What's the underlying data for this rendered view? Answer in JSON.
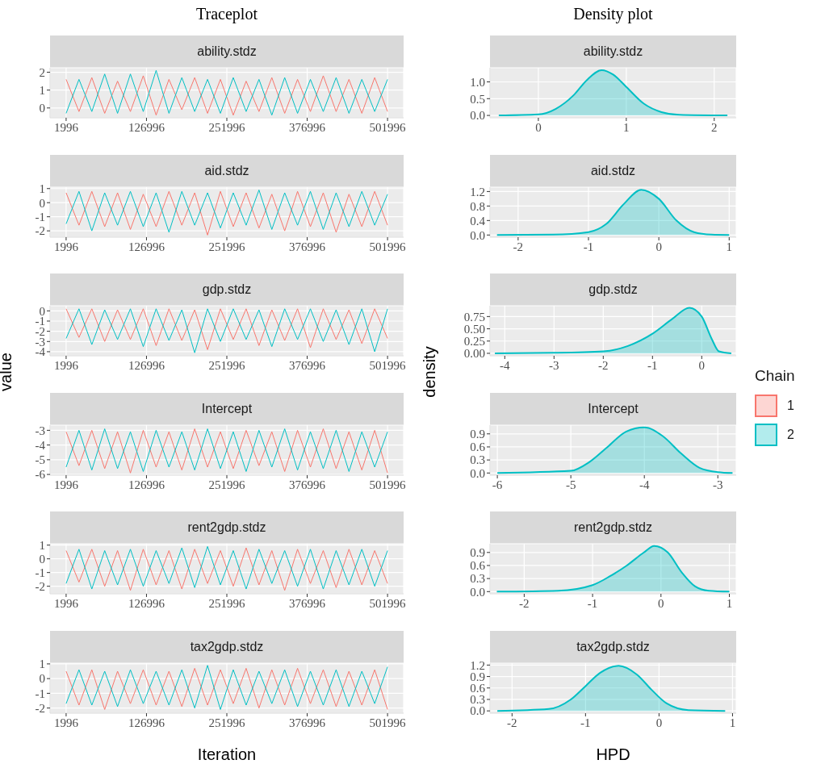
{
  "chart_data": [
    {
      "type": "line",
      "title": "Traceplot",
      "subtitle": "ability.stdz",
      "grid": true,
      "xlim": [
        -23004,
        526996
      ],
      "xticks": [
        1996,
        126996,
        251996,
        376996,
        501996
      ],
      "ylim": [
        -0.55,
        2.25
      ],
      "yticks": [
        0,
        1,
        2
      ],
      "x": [
        1996,
        21996,
        41996,
        61996,
        81996,
        101996,
        121996,
        141996,
        161996,
        181996,
        201996,
        221996,
        241996,
        261996,
        281996,
        301996,
        321996,
        341996,
        361996,
        381996,
        401996,
        421996,
        441996,
        461996,
        481996,
        501996
      ],
      "series": [
        {
          "color": "#f8766d",
          "values": [
            1.6,
            -0.2,
            1.7,
            -0.3,
            1.5,
            -0.2,
            1.8,
            -0.4,
            1.6,
            -0.1,
            1.7,
            -0.3,
            1.6,
            -0.4,
            1.5,
            -0.2,
            1.7,
            -0.3,
            1.6,
            -0.2,
            1.8,
            -0.2,
            1.6,
            -0.3,
            1.7,
            -0.2
          ]
        },
        {
          "color": "#00bfc4",
          "values": [
            -0.3,
            1.6,
            -0.2,
            1.9,
            -0.3,
            1.9,
            -0.2,
            2.1,
            -0.3,
            1.7,
            -0.2,
            1.6,
            -0.3,
            1.7,
            -0.2,
            1.6,
            -0.4,
            1.7,
            -0.3,
            1.6,
            -0.2,
            1.7,
            -0.3,
            1.6,
            -0.2,
            1.6
          ]
        }
      ]
    },
    {
      "type": "area",
      "title": "Density plot",
      "subtitle": "ability.stdz",
      "grid": true,
      "xlim": [
        -0.55,
        2.25
      ],
      "xticks": [
        0,
        1,
        2
      ],
      "ylim": [
        -0.07,
        1.42
      ],
      "yticks": [
        {
          "value": 0,
          "label": "0.0"
        },
        {
          "value": 0.5,
          "label": "0.5"
        },
        {
          "value": 1,
          "label": "1.0"
        }
      ],
      "x": [
        -0.45,
        0,
        0.2,
        0.4,
        0.55,
        0.72,
        0.85,
        1.0,
        1.2,
        1.4,
        1.6,
        2.15
      ],
      "series": [
        {
          "color": "#00bfc4",
          "values": [
            0,
            0.03,
            0.2,
            0.6,
            1.05,
            1.35,
            1.22,
            0.85,
            0.35,
            0.1,
            0.02,
            0
          ]
        }
      ]
    },
    {
      "type": "line",
      "subtitle": "aid.stdz",
      "grid": true,
      "xlim": [
        -23004,
        526996
      ],
      "xticks": [
        1996,
        126996,
        251996,
        376996,
        501996
      ],
      "ylim": [
        -2.45,
        1.1
      ],
      "yticks": [
        -2,
        -1,
        0,
        1
      ],
      "x": [
        1996,
        21996,
        41996,
        61996,
        81996,
        101996,
        121996,
        141996,
        161996,
        181996,
        201996,
        221996,
        241996,
        261996,
        281996,
        301996,
        321996,
        341996,
        361996,
        381996,
        401996,
        421996,
        441996,
        461996,
        481996,
        501996
      ],
      "series": [
        {
          "color": "#f8766d",
          "values": [
            0.7,
            -1.6,
            0.8,
            -1.7,
            0.7,
            -1.9,
            0.6,
            -1.7,
            0.8,
            -1.6,
            0.7,
            -2.3,
            0.8,
            -1.7,
            0.7,
            -1.8,
            0.6,
            -2.0,
            0.8,
            -1.7,
            0.7,
            -2.1,
            0.6,
            -1.7,
            0.8,
            -1.6
          ]
        },
        {
          "color": "#00bfc4",
          "values": [
            -1.5,
            0.8,
            -2.0,
            0.7,
            -1.6,
            0.8,
            -1.7,
            0.7,
            -2.1,
            0.8,
            -1.6,
            0.7,
            -1.8,
            0.7,
            -1.6,
            0.9,
            -1.9,
            0.7,
            -1.6,
            0.8,
            -1.9,
            0.7,
            -1.7,
            0.8,
            -1.6,
            0.6
          ]
        }
      ]
    },
    {
      "type": "area",
      "subtitle": "aid.stdz",
      "grid": true,
      "xlim": [
        -2.4,
        1.1
      ],
      "xticks": [
        -2,
        -1,
        0,
        1
      ],
      "ylim": [
        -0.06,
        1.32
      ],
      "yticks": [
        {
          "value": 0,
          "label": "0.0"
        },
        {
          "value": 0.4,
          "label": "0.4"
        },
        {
          "value": 0.8,
          "label": "0.8"
        },
        {
          "value": 1.2,
          "label": "1.2"
        }
      ],
      "x": [
        -2.3,
        -1.5,
        -1.0,
        -0.75,
        -0.5,
        -0.25,
        0,
        0.25,
        0.5,
        0.75,
        1.0
      ],
      "series": [
        {
          "color": "#00bfc4",
          "values": [
            0,
            0.01,
            0.08,
            0.3,
            0.85,
            1.25,
            1.0,
            0.4,
            0.08,
            0.01,
            0
          ]
        }
      ]
    },
    {
      "type": "line",
      "subtitle": "gdp.stdz",
      "ylabel": "value",
      "grid": true,
      "xlim": [
        -23004,
        526996
      ],
      "xticks": [
        1996,
        126996,
        251996,
        376996,
        501996
      ],
      "ylim": [
        -4.4,
        0.5
      ],
      "yticks": [
        -4,
        -3,
        -2,
        -1,
        0
      ],
      "x": [
        1996,
        21996,
        41996,
        61996,
        81996,
        101996,
        121996,
        141996,
        161996,
        181996,
        201996,
        221996,
        241996,
        261996,
        281996,
        301996,
        321996,
        341996,
        361996,
        381996,
        401996,
        421996,
        441996,
        461996,
        481996,
        501996
      ],
      "series": [
        {
          "color": "#f8766d",
          "values": [
            0.2,
            -2.6,
            0.2,
            -3.0,
            0.1,
            -2.8,
            0.2,
            -3.4,
            0.2,
            -2.9,
            0.1,
            -3.8,
            0.2,
            -2.8,
            0.2,
            -3.4,
            0.1,
            -2.9,
            0.2,
            -3.6,
            0.2,
            -2.8,
            0.1,
            -3.2,
            0.2,
            -2.7
          ]
        },
        {
          "color": "#00bfc4",
          "values": [
            -2.7,
            0.2,
            -3.3,
            0.1,
            -2.8,
            0.2,
            -3.5,
            0.2,
            -2.9,
            0.1,
            -4.1,
            0.2,
            -3.0,
            0.2,
            -2.8,
            0.1,
            -3.5,
            0.2,
            -2.8,
            0.2,
            -3.0,
            0.1,
            -3.3,
            0.2,
            -4.0,
            0.2
          ]
        }
      ]
    },
    {
      "type": "area",
      "subtitle": "gdp.stdz",
      "ylabel": "density",
      "grid": true,
      "xlim": [
        -4.3,
        0.7
      ],
      "xticks": [
        -4,
        -3,
        -2,
        -1,
        0
      ],
      "ylim": [
        -0.05,
        0.97
      ],
      "yticks": [
        {
          "value": 0,
          "label": "0.00"
        },
        {
          "value": 0.25,
          "label": "0.25"
        },
        {
          "value": 0.5,
          "label": "0.50"
        },
        {
          "value": 0.75,
          "label": "0.75"
        }
      ],
      "x": [
        -4.2,
        -3,
        -2,
        -1.5,
        -1,
        -0.6,
        -0.25,
        0,
        0.2,
        0.35,
        0.6
      ],
      "series": [
        {
          "color": "#00bfc4",
          "values": [
            0,
            0.01,
            0.04,
            0.15,
            0.4,
            0.7,
            0.93,
            0.75,
            0.3,
            0.04,
            0
          ]
        }
      ]
    },
    {
      "type": "line",
      "subtitle": "Intercept",
      "grid": true,
      "legend": "right",
      "legend_title": "Chain",
      "xlim": [
        -23004,
        526996
      ],
      "xticks": [
        1996,
        126996,
        251996,
        376996,
        501996
      ],
      "ylim": [
        -6.05,
        -2.65
      ],
      "yticks": [
        -6,
        -5,
        -4,
        -3
      ],
      "x": [
        1996,
        21996,
        41996,
        61996,
        81996,
        101996,
        121996,
        141996,
        161996,
        181996,
        201996,
        221996,
        241996,
        261996,
        281996,
        301996,
        321996,
        341996,
        361996,
        381996,
        401996,
        421996,
        441996,
        461996,
        481996,
        501996
      ],
      "series": [
        {
          "name": "1",
          "color": "#f8766d",
          "values": [
            -3.1,
            -5.4,
            -3.0,
            -5.6,
            -3.1,
            -5.9,
            -3.0,
            -5.5,
            -3.1,
            -5.7,
            -2.9,
            -5.5,
            -3.1,
            -5.6,
            -3.0,
            -5.4,
            -3.1,
            -5.8,
            -3.0,
            -5.5,
            -2.9,
            -5.6,
            -3.1,
            -5.7,
            -3.0,
            -5.9
          ]
        },
        {
          "name": "2",
          "color": "#00bfc4",
          "values": [
            -5.5,
            -3.0,
            -5.7,
            -2.9,
            -5.6,
            -3.1,
            -5.8,
            -3.0,
            -5.5,
            -3.1,
            -5.7,
            -2.9,
            -5.6,
            -3.1,
            -5.8,
            -3.0,
            -5.5,
            -2.9,
            -5.7,
            -3.1,
            -5.6,
            -3.0,
            -5.8,
            -3.1,
            -5.5,
            -3.1
          ]
        }
      ]
    },
    {
      "type": "area",
      "subtitle": "Intercept",
      "grid": true,
      "xlim": [
        -6.1,
        -2.75
      ],
      "xticks": [
        -6,
        -5,
        -4,
        -3
      ],
      "ylim": [
        -0.05,
        1.1
      ],
      "yticks": [
        {
          "value": 0,
          "label": "0.0"
        },
        {
          "value": 0.3,
          "label": "0.3"
        },
        {
          "value": 0.6,
          "label": "0.6"
        },
        {
          "value": 0.9,
          "label": "0.9"
        }
      ],
      "x": [
        -6,
        -5,
        -4.75,
        -4.5,
        -4.25,
        -4.0,
        -3.75,
        -3.5,
        -3.25,
        -3,
        -2.8
      ],
      "series": [
        {
          "color": "#00bfc4",
          "values": [
            0,
            0.05,
            0.25,
            0.6,
            0.95,
            1.05,
            0.85,
            0.45,
            0.12,
            0.02,
            0
          ]
        }
      ]
    },
    {
      "type": "line",
      "subtitle": "rent2gdp.stdz",
      "grid": true,
      "xlim": [
        -23004,
        526996
      ],
      "xticks": [
        1996,
        126996,
        251996,
        376996,
        501996
      ],
      "ylim": [
        -2.55,
        1.1
      ],
      "yticks": [
        -2,
        -1,
        0,
        1
      ],
      "x": [
        1996,
        21996,
        41996,
        61996,
        81996,
        101996,
        121996,
        141996,
        161996,
        181996,
        201996,
        221996,
        241996,
        261996,
        281996,
        301996,
        321996,
        341996,
        361996,
        381996,
        401996,
        421996,
        441996,
        461996,
        481996,
        501996
      ],
      "series": [
        {
          "color": "#f8766d",
          "values": [
            0.6,
            -1.7,
            0.7,
            -2.0,
            0.6,
            -2.3,
            0.7,
            -1.9,
            0.6,
            -2.2,
            0.7,
            -1.8,
            0.6,
            -2.0,
            0.8,
            -1.9,
            0.6,
            -2.3,
            0.7,
            -1.8,
            0.6,
            -2.1,
            0.7,
            -1.9,
            0.6,
            -1.8
          ]
        },
        {
          "color": "#00bfc4",
          "values": [
            -1.8,
            0.7,
            -2.2,
            0.6,
            -1.9,
            0.7,
            -2.0,
            0.6,
            -1.8,
            0.8,
            -2.1,
            0.9,
            -1.9,
            0.6,
            -2.2,
            0.7,
            -1.8,
            0.6,
            -2.0,
            0.7,
            -2.2,
            0.6,
            -1.9,
            0.7,
            -2.0,
            0.6
          ]
        }
      ]
    },
    {
      "type": "area",
      "subtitle": "rent2gdp.stdz",
      "grid": true,
      "xlim": [
        -2.5,
        1.1
      ],
      "xticks": [
        -2,
        -1,
        0,
        1
      ],
      "ylim": [
        -0.05,
        1.1
      ],
      "yticks": [
        {
          "value": 0,
          "label": "0.0"
        },
        {
          "value": 0.3,
          "label": "0.3"
        },
        {
          "value": 0.6,
          "label": "0.6"
        },
        {
          "value": 0.9,
          "label": "0.9"
        }
      ],
      "x": [
        -2.4,
        -1.5,
        -1,
        -0.75,
        -0.5,
        -0.25,
        -0.1,
        0.1,
        0.3,
        0.5,
        0.7,
        1.0
      ],
      "series": [
        {
          "color": "#00bfc4",
          "values": [
            0,
            0.02,
            0.15,
            0.35,
            0.6,
            0.9,
            1.05,
            0.9,
            0.45,
            0.12,
            0.02,
            0
          ]
        }
      ]
    },
    {
      "type": "line",
      "subtitle": "tax2gdp.stdz",
      "xlabel": "Iteration",
      "grid": true,
      "xlim": [
        -23004,
        526996
      ],
      "xticks": [
        1996,
        126996,
        251996,
        376996,
        501996
      ],
      "ylim": [
        -2.35,
        1.05
      ],
      "yticks": [
        -2,
        -1,
        0,
        1
      ],
      "x": [
        1996,
        21996,
        41996,
        61996,
        81996,
        101996,
        121996,
        141996,
        161996,
        181996,
        201996,
        221996,
        241996,
        261996,
        281996,
        301996,
        321996,
        341996,
        361996,
        381996,
        401996,
        421996,
        441996,
        461996,
        481996,
        501996
      ],
      "series": [
        {
          "color": "#f8766d",
          "values": [
            0.5,
            -1.8,
            0.6,
            -2.1,
            0.5,
            -1.7,
            0.6,
            -1.8,
            0.5,
            -1.9,
            0.7,
            -1.8,
            0.6,
            -1.7,
            0.7,
            -2.0,
            0.6,
            -1.8,
            0.7,
            -1.7,
            0.6,
            -1.9,
            0.5,
            -1.8,
            0.6,
            -2.1
          ]
        },
        {
          "color": "#00bfc4",
          "values": [
            -1.7,
            0.6,
            -1.8,
            0.5,
            -1.9,
            0.6,
            -1.7,
            0.5,
            -1.8,
            0.6,
            -2.0,
            0.9,
            -2.1,
            0.6,
            -1.8,
            0.5,
            -1.7,
            0.6,
            -1.9,
            0.5,
            -1.8,
            0.6,
            -1.9,
            0.5,
            -1.7,
            0.8
          ]
        }
      ]
    },
    {
      "type": "area",
      "subtitle": "tax2gdp.stdz",
      "xlabel": "HPD",
      "grid": true,
      "xlim": [
        -2.3,
        1.05
      ],
      "xticks": [
        -2,
        -1,
        0,
        1
      ],
      "ylim": [
        -0.06,
        1.25
      ],
      "yticks": [
        {
          "value": 0,
          "label": "0.0"
        },
        {
          "value": 0.3,
          "label": "0.3"
        },
        {
          "value": 0.6,
          "label": "0.6"
        },
        {
          "value": 0.9,
          "label": "0.9"
        },
        {
          "value": 1.2,
          "label": "1.2"
        }
      ],
      "x": [
        -2.2,
        -1.5,
        -1.2,
        -1.0,
        -0.8,
        -0.55,
        -0.3,
        -0.1,
        0.1,
        0.4,
        0.9
      ],
      "series": [
        {
          "color": "#00bfc4",
          "values": [
            0,
            0.05,
            0.3,
            0.65,
            1.0,
            1.18,
            0.95,
            0.55,
            0.2,
            0.02,
            0
          ]
        }
      ]
    }
  ]
}
